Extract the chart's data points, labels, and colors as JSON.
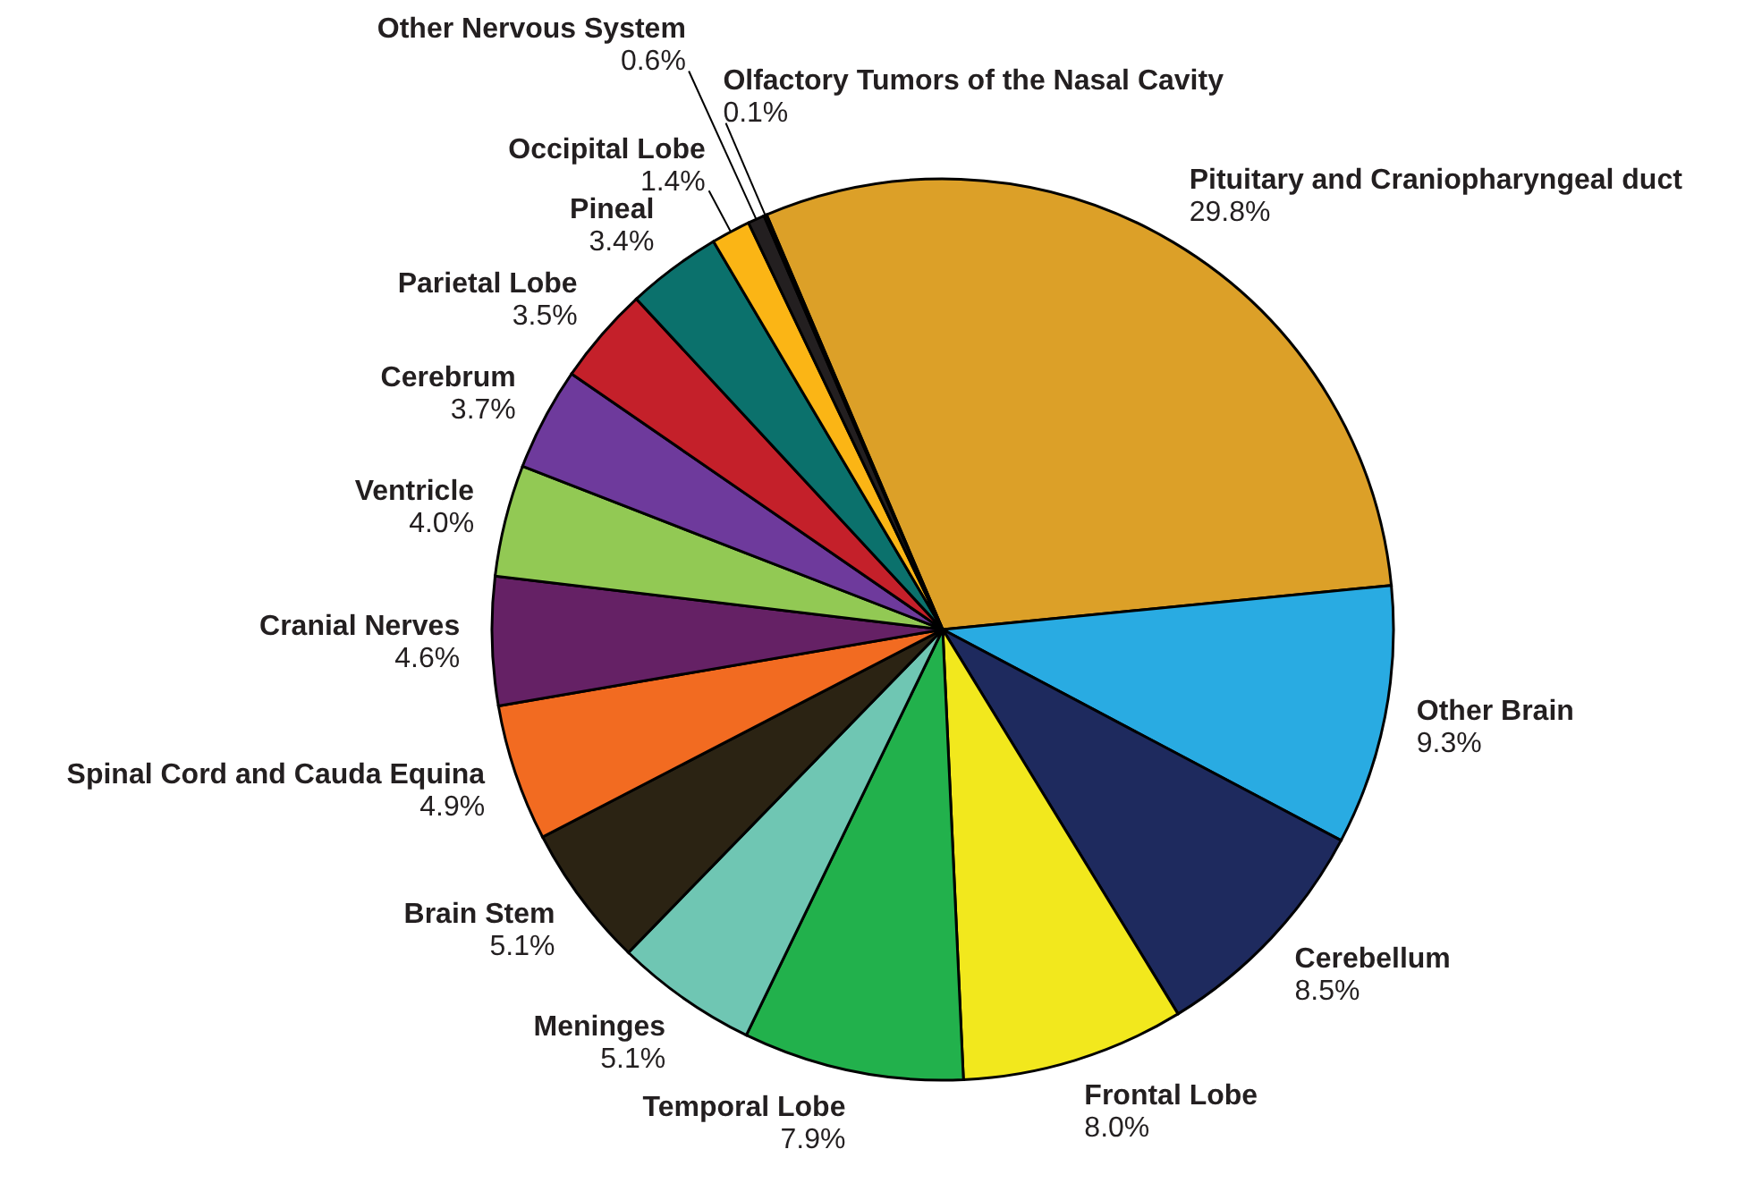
{
  "chart_data": {
    "type": "pie",
    "categories": [
      "Pituitary and Craniopharyngeal duct",
      "Other Brain",
      "Cerebellum",
      "Frontal Lobe",
      "Temporal Lobe",
      "Meninges",
      "Brain Stem",
      "Spinal Cord and Cauda Equina",
      "Cranial Nerves",
      "Ventricle",
      "Cerebrum",
      "Parietal Lobe",
      "Pineal",
      "Occipital Lobe",
      "Other Nervous System",
      "Olfactory Tumors of the Nasal Cavity"
    ],
    "values": [
      29.8,
      9.3,
      8.5,
      8.0,
      7.9,
      5.1,
      5.1,
      4.9,
      4.6,
      4.0,
      3.7,
      3.5,
      3.4,
      1.4,
      0.6,
      0.1
    ],
    "value_labels": [
      "29.8%",
      "9.3%",
      "8.5%",
      "8.0%",
      "7.9%",
      "5.1%",
      "5.1%",
      "4.9%",
      "4.6%",
      "4.0%",
      "3.7%",
      "3.5%",
      "3.4%",
      "1.4%",
      "0.6%",
      "0.1%"
    ],
    "colors": [
      "#dca028",
      "#29abe2",
      "#1e2a5e",
      "#f2e81d",
      "#22b14c",
      "#6fc6b3",
      "#2b2313",
      "#f26b21",
      "#652165",
      "#92c954",
      "#6e3a9c",
      "#c4202a",
      "#0b716c",
      "#fbb515",
      "#231f20",
      "#231f20"
    ]
  }
}
